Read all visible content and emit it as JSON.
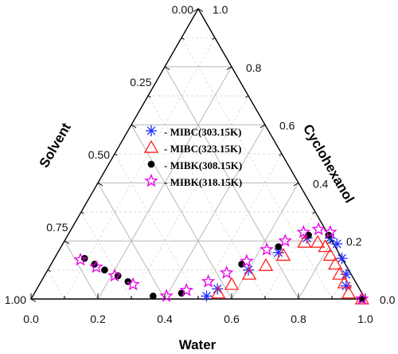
{
  "chart_data": {
    "type": "scatter",
    "subtype": "ternary",
    "axes": {
      "water": {
        "label": "Water",
        "ticks": [
          "0.0",
          "0.2",
          "0.4",
          "0.6",
          "0.8",
          "1.0"
        ]
      },
      "solvent": {
        "label": "Solvent",
        "ticks": [
          "0.00",
          "0.25",
          "0.50",
          "0.75",
          "1.00"
        ]
      },
      "cyclohexanol": {
        "label": "Cyclohexanol",
        "ticks": [
          "0.0",
          "0.2",
          "0.4",
          "0.6",
          "0.8",
          "1.0"
        ]
      }
    },
    "grid": true,
    "legend_position": "center",
    "series": [
      {
        "name": "- MIBC(303.15K)",
        "marker": "asterisk",
        "color": "#1f2bff",
        "points": [
          {
            "water": 0.92,
            "cyclohexanol": 0.045
          },
          {
            "water": 0.9,
            "cyclohexanol": 0.085
          },
          {
            "water": 0.86,
            "cyclohexanol": 0.14
          },
          {
            "water": 0.82,
            "cyclohexanol": 0.19
          },
          {
            "water": 0.79,
            "cyclohexanol": 0.21
          },
          {
            "water": 0.72,
            "cyclohexanol": 0.21
          },
          {
            "water": 0.66,
            "cyclohexanol": 0.16
          },
          {
            "water": 0.6,
            "cyclohexanol": 0.1
          },
          {
            "water": 0.54,
            "cyclohexanol": 0.035
          },
          {
            "water": 0.52,
            "cyclohexanol": 0.01
          }
        ]
      },
      {
        "name": "- MIBC(323.15K)",
        "marker": "triangle-open",
        "color": "#ff2020",
        "points": [
          {
            "water": 0.99,
            "cyclohexanol": 0.0
          },
          {
            "water": 0.94,
            "cyclohexanol": 0.02
          },
          {
            "water": 0.91,
            "cyclohexanol": 0.055
          },
          {
            "water": 0.88,
            "cyclohexanol": 0.085
          },
          {
            "water": 0.85,
            "cyclohexanol": 0.12
          },
          {
            "water": 0.82,
            "cyclohexanol": 0.15
          },
          {
            "water": 0.79,
            "cyclohexanol": 0.18
          },
          {
            "water": 0.76,
            "cyclohexanol": 0.195
          },
          {
            "water": 0.72,
            "cyclohexanol": 0.195
          },
          {
            "water": 0.68,
            "cyclohexanol": 0.15
          },
          {
            "water": 0.645,
            "cyclohexanol": 0.115
          },
          {
            "water": 0.61,
            "cyclohexanol": 0.085
          },
          {
            "water": 0.575,
            "cyclohexanol": 0.05
          },
          {
            "water": 0.55,
            "cyclohexanol": 0.02
          }
        ]
      },
      {
        "name": "- MIBK(308.15K)",
        "marker": "circle-filled",
        "color": "#000000",
        "points": [
          {
            "water": 0.99,
            "cyclohexanol": 0.0
          },
          {
            "water": 0.78,
            "cyclohexanol": 0.22
          },
          {
            "water": 0.72,
            "cyclohexanol": 0.22
          },
          {
            "water": 0.65,
            "cyclohexanol": 0.18
          },
          {
            "water": 0.57,
            "cyclohexanol": 0.12
          },
          {
            "water": 0.44,
            "cyclohexanol": 0.02
          },
          {
            "water": 0.36,
            "cyclohexanol": 0.01
          },
          {
            "water": 0.26,
            "cyclohexanol": 0.06
          },
          {
            "water": 0.22,
            "cyclohexanol": 0.08
          },
          {
            "water": 0.17,
            "cyclohexanol": 0.1
          },
          {
            "water": 0.13,
            "cyclohexanol": 0.12
          },
          {
            "water": 0.09,
            "cyclohexanol": 0.14
          }
        ]
      },
      {
        "name": "- MIBK(318.15K)",
        "marker": "star-open",
        "color": "#e600e6",
        "points": [
          {
            "water": 0.99,
            "cyclohexanol": 0.0
          },
          {
            "water": 0.78,
            "cyclohexanol": 0.23
          },
          {
            "water": 0.74,
            "cyclohexanol": 0.24
          },
          {
            "water": 0.7,
            "cyclohexanol": 0.23
          },
          {
            "water": 0.66,
            "cyclohexanol": 0.2
          },
          {
            "water": 0.62,
            "cyclohexanol": 0.17
          },
          {
            "water": 0.58,
            "cyclohexanol": 0.13
          },
          {
            "water": 0.54,
            "cyclohexanol": 0.09
          },
          {
            "water": 0.5,
            "cyclohexanol": 0.06
          },
          {
            "water": 0.45,
            "cyclohexanol": 0.03
          },
          {
            "water": 0.4,
            "cyclohexanol": 0.01
          },
          {
            "water": 0.28,
            "cyclohexanol": 0.05
          },
          {
            "water": 0.21,
            "cyclohexanol": 0.08
          },
          {
            "water": 0.14,
            "cyclohexanol": 0.11
          },
          {
            "water": 0.08,
            "cyclohexanol": 0.135
          }
        ]
      }
    ]
  }
}
